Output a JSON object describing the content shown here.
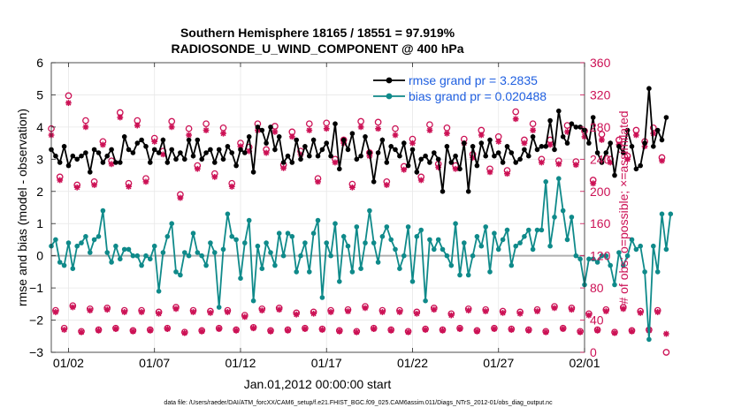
{
  "chart_data": {
    "type": "line",
    "title": "Southern Hemisphere 18165 / 18551 = 97.919%",
    "subtitle": "RADIOSONDE_U_WIND_COMPONENT @ 400 hPa",
    "xlabel": "Jan.01,2012 00:00:00 start",
    "ylabel_left": "rmse and bias (model - observation)",
    "ylabel_right": "# of obs: o=possible; ×=assimilated",
    "footnote": "data file: /Users/raeder/DAI/ATM_forcXX/CAM6_setup/f.e21.FHIST_BGC.f09_025.CAM6assim.011/Diags_NTrS_2012-01/obs_diag_output.nc",
    "xlim": [
      0.5,
      31.5
    ],
    "ylim_left": [
      -3,
      6
    ],
    "ylim_right": [
      0,
      360
    ],
    "x_ticks": [
      1.5,
      6.5,
      11.5,
      16.5,
      21.5,
      26.5,
      31.5
    ],
    "x_tick_labels": [
      "01/02",
      "01/07",
      "01/12",
      "01/17",
      "01/22",
      "01/27",
      "02/01"
    ],
    "y_ticks_left": [
      -3,
      -2,
      -1,
      0,
      1,
      2,
      3,
      4,
      5,
      6
    ],
    "y_ticks_right": [
      0,
      40,
      80,
      120,
      160,
      200,
      240,
      280,
      320,
      360
    ],
    "grid": true,
    "legend_position": "top-right",
    "colors": {
      "rmse": "#000000",
      "bias": "#0f8a8a",
      "obs": "#cc1155",
      "legend_text": "#1f5fe0",
      "zero_line": "#b0b0b0",
      "grid": "#e8e8e8"
    },
    "start_x": 0.5,
    "step_x": 0.25,
    "series": [
      {
        "name": "rmse grand pr = 3.2835",
        "axis": "left",
        "marker": "dot",
        "values": [
          3.3,
          3.1,
          2.9,
          3.4,
          2.8,
          3.1,
          3.0,
          3.1,
          3.2,
          2.6,
          3.3,
          3.2,
          2.9,
          3.1,
          3.3,
          2.9,
          2.9,
          3.7,
          3.3,
          3.2,
          3.5,
          3.6,
          3.4,
          2.9,
          3.3,
          3.2,
          3.6,
          2.9,
          3.3,
          3.0,
          3.2,
          3.0,
          3.6,
          3.1,
          3.6,
          3.0,
          3.2,
          3.3,
          2.9,
          3.3,
          3.0,
          3.4,
          3.2,
          2.8,
          3.3,
          3.2,
          3.7,
          2.6,
          4.0,
          3.9,
          3.5,
          4.0,
          3.3,
          3.7,
          2.9,
          3.1,
          2.9,
          3.6,
          3.0,
          3.4,
          3.1,
          3.6,
          3.1,
          3.3,
          3.5,
          3.1,
          4.1,
          2.7,
          3.6,
          3.3,
          3.8,
          3.0,
          3.1,
          3.7,
          3.2,
          2.3,
          3.2,
          3.6,
          2.9,
          3.4,
          3.3,
          3.1,
          3.5,
          2.8,
          3.3,
          2.6,
          3.0,
          3.1,
          2.9,
          3.2,
          3.0,
          2.0,
          3.4,
          2.9,
          3.1,
          2.7,
          3.5,
          2.0,
          3.4,
          2.8,
          3.5,
          3.1,
          3.6,
          3.1,
          3.2,
          2.9,
          3.4,
          3.2,
          2.9,
          3.0,
          3.3,
          3.1,
          3.7,
          3.3,
          3.4,
          3.4,
          4.2,
          3.3,
          4.5,
          3.7,
          3.5,
          4.1,
          4.0,
          4.0,
          3.9,
          3.5,
          4.3,
          3.2,
          2.9,
          3.2,
          3.5,
          2.5,
          3.4,
          3.2,
          3.9,
          3.4,
          2.7,
          2.8,
          3.5,
          5.2,
          3.4,
          3.9,
          3.6,
          4.3
        ]
      },
      {
        "name": "bias grand pr = 0.020488",
        "axis": "left",
        "marker": "dot",
        "values": [
          0.3,
          0.5,
          -0.2,
          -0.3,
          0.4,
          -0.4,
          0.3,
          0.4,
          0.6,
          0.1,
          0.5,
          0.6,
          1.4,
          0.1,
          -0.2,
          0.3,
          -0.1,
          0.2,
          0.2,
          0.0,
          0.0,
          -0.3,
          0.0,
          -0.1,
          0.3,
          -1.1,
          0.1,
          0.6,
          1.0,
          -0.5,
          -0.6,
          0.1,
          0.0,
          0.7,
          0.1,
          0.0,
          -0.3,
          0.4,
          0.1,
          -1.6,
          0.2,
          1.3,
          0.6,
          0.5,
          -0.7,
          0.4,
          1.1,
          -1.4,
          0.3,
          -0.4,
          0.4,
          0.1,
          -0.3,
          0.7,
          0.0,
          0.7,
          0.6,
          -0.5,
          0.0,
          0.4,
          -0.5,
          0.7,
          1.1,
          -1.3,
          0.4,
          0.0,
          1.0,
          -0.8,
          0.6,
          0.3,
          -0.5,
          0.9,
          -0.4,
          0.4,
          1.4,
          0.4,
          -0.2,
          0.6,
          0.9,
          0.5,
          0.2,
          -0.4,
          0.0,
          0.9,
          -0.8,
          0.6,
          0.8,
          -1.4,
          0.5,
          0.2,
          0.5,
          0.2,
          0.0,
          -0.3,
          1.0,
          -0.6,
          0.4,
          -0.6,
          0.0,
          0.6,
          0.3,
          0.9,
          -0.5,
          0.7,
          0.2,
          0.5,
          0.8,
          -0.3,
          0.3,
          0.4,
          0.6,
          0.8,
          0.2,
          0.8,
          0.8,
          2.3,
          0.3,
          1.2,
          2.4,
          1.4,
          0.5,
          1.2,
          0.0,
          -0.1,
          -0.9,
          -0.1,
          -0.1,
          -0.2,
          0.0,
          0.0,
          -0.3,
          -0.9,
          0.1,
          -0.3,
          0.0,
          0.5,
          0.2,
          0.3,
          -0.5,
          -2.6,
          0.3,
          -0.5,
          1.3,
          0.2,
          1.3
        ]
      },
      {
        "name": "obs possible",
        "axis": "right",
        "marker": "circle",
        "values": [
          278,
          52,
          218,
          30,
          319,
          58,
          208,
          26,
          288,
          54,
          212,
          28,
          262,
          55,
          238,
          30,
          298,
          52,
          210,
          27,
          288,
          52,
          216,
          28,
          266,
          50,
          250,
          30,
          287,
          56,
          196,
          25,
          278,
          52,
          232,
          27,
          284,
          51,
          222,
          30,
          279,
          52,
          210,
          28,
          260,
          46,
          255,
          31,
          284,
          54,
          252,
          27,
          281,
          55,
          233,
          28,
          274,
          49,
          250,
          30,
          284,
          50,
          216,
          29,
          285,
          52,
          240,
          27,
          264,
          53,
          209,
          26,
          287,
          57,
          248,
          30,
          286,
          52,
          212,
          28,
          278,
          52,
          231,
          26,
          265,
          50,
          218,
          29,
          283,
          55,
          234,
          28,
          279,
          48,
          232,
          30,
          265,
          54,
          246,
          27,
          276,
          53,
          228,
          30,
          268,
          51,
          226,
          29,
          299,
          50,
          264,
          28,
          284,
          53,
          240,
          26,
          264,
          57,
          238,
          30,
          282,
          55,
          237,
          26,
          275,
          48,
          214,
          28,
          271,
          53,
          240,
          25,
          264,
          56,
          244,
          27,
          276,
          51,
          262,
          28,
          279,
          52,
          242,
          0
        ]
      },
      {
        "name": "obs assimilated",
        "axis": "right",
        "marker": "star",
        "values": [
          270,
          50,
          214,
          28,
          310,
          56,
          205,
          25,
          280,
          52,
          208,
          27,
          258,
          53,
          234,
          29,
          292,
          50,
          206,
          26,
          282,
          50,
          212,
          27,
          262,
          48,
          246,
          29,
          280,
          54,
          192,
          24,
          270,
          50,
          228,
          26,
          276,
          49,
          218,
          29,
          272,
          50,
          206,
          27,
          256,
          44,
          250,
          30,
          276,
          52,
          248,
          26,
          274,
          53,
          229,
          27,
          268,
          47,
          246,
          29,
          276,
          48,
          212,
          28,
          278,
          50,
          236,
          26,
          260,
          51,
          205,
          25,
          280,
          55,
          244,
          29,
          278,
          50,
          208,
          27,
          270,
          50,
          227,
          25,
          260,
          48,
          214,
          28,
          276,
          53,
          230,
          27,
          272,
          46,
          228,
          29,
          260,
          52,
          242,
          26,
          270,
          51,
          224,
          29,
          262,
          49,
          222,
          28,
          290,
          48,
          260,
          27,
          276,
          51,
          236,
          25,
          258,
          55,
          234,
          29,
          274,
          53,
          233,
          25,
          268,
          46,
          210,
          27,
          264,
          51,
          236,
          24,
          258,
          54,
          240,
          26,
          270,
          49,
          256,
          27,
          272,
          50,
          238,
          23
        ]
      }
    ]
  }
}
